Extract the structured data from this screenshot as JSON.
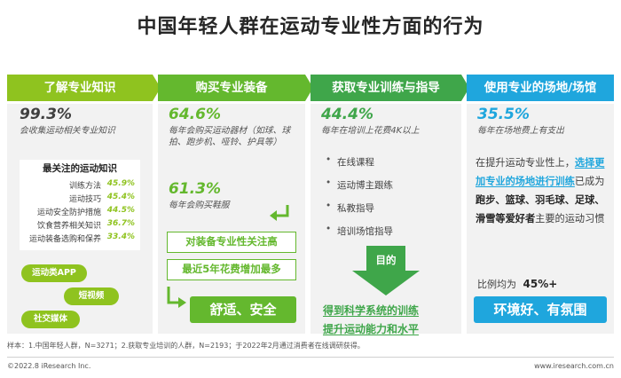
{
  "title": "中国年轻人群在运动专业性方面的行为",
  "col1": {
    "header": "了解专业知识",
    "pct": "99.3%",
    "desc": "会收集运动相关专业知识",
    "focus_title": "最关注的运动知识",
    "focus_items": [
      {
        "label": "训练方法",
        "value": "45.9%"
      },
      {
        "label": "运动技巧",
        "value": "45.4%"
      },
      {
        "label": "运动安全防护措施",
        "value": "44.5%"
      },
      {
        "label": "饮食营养相关知识",
        "value": "36.7%"
      },
      {
        "label": "运动装备选购和保养",
        "value": "33.4%"
      }
    ],
    "channels": [
      "运动类APP",
      "短视频",
      "社交媒体"
    ]
  },
  "col2": {
    "header": "购买专业装备",
    "pct1": "64.6%",
    "desc1": "每年会购买运动器材（如球、球拍、跑步机、哑铃、护具等）",
    "pct2": "61.3%",
    "desc2": "每年会购买鞋服",
    "box1": "对装备专业性关注高",
    "box2": "最近5年花费增加最多",
    "box3": "舒适、安全"
  },
  "col3": {
    "header": "获取专业训练与指导",
    "pct": "44.4%",
    "desc": "每年在培训上花费4K以上",
    "bullets": [
      "在线课程",
      "运动博主跟练",
      "私教指导",
      "培训场馆指导"
    ],
    "arrow_label": "目的",
    "goal1": "得到科学系统的训练",
    "goal2": "提升运动能力和水平"
  },
  "col4": {
    "header": "使用专业的场地/场馆",
    "pct": "35.5%",
    "desc": "每年在场地费上有支出",
    "text_pre": "在提升运动专业性上，",
    "text_hl": "选择更加专业的场地进行训练",
    "text_mid": "已成为",
    "text_bold": "跑步、篮球、羽毛球、足球、滑雪等爱好者",
    "text_post": "主要的运动习惯",
    "ratio_label": "比例均为",
    "ratio_value": "45%+",
    "box": "环境好、有氛围"
  },
  "footnote": "样本：1.中国年轻人群，N=3271；2.获取专业培训的人群，N=2193；于2022年2月通过消费者在线调研获得。",
  "copyright": "©2022.8 iResearch Inc.",
  "url": "www.iresearch.com.cn",
  "colors": {
    "c1": "#8fc31f",
    "c2": "#64b82e",
    "c3": "#3fa64a",
    "c4": "#1fa6dd"
  }
}
